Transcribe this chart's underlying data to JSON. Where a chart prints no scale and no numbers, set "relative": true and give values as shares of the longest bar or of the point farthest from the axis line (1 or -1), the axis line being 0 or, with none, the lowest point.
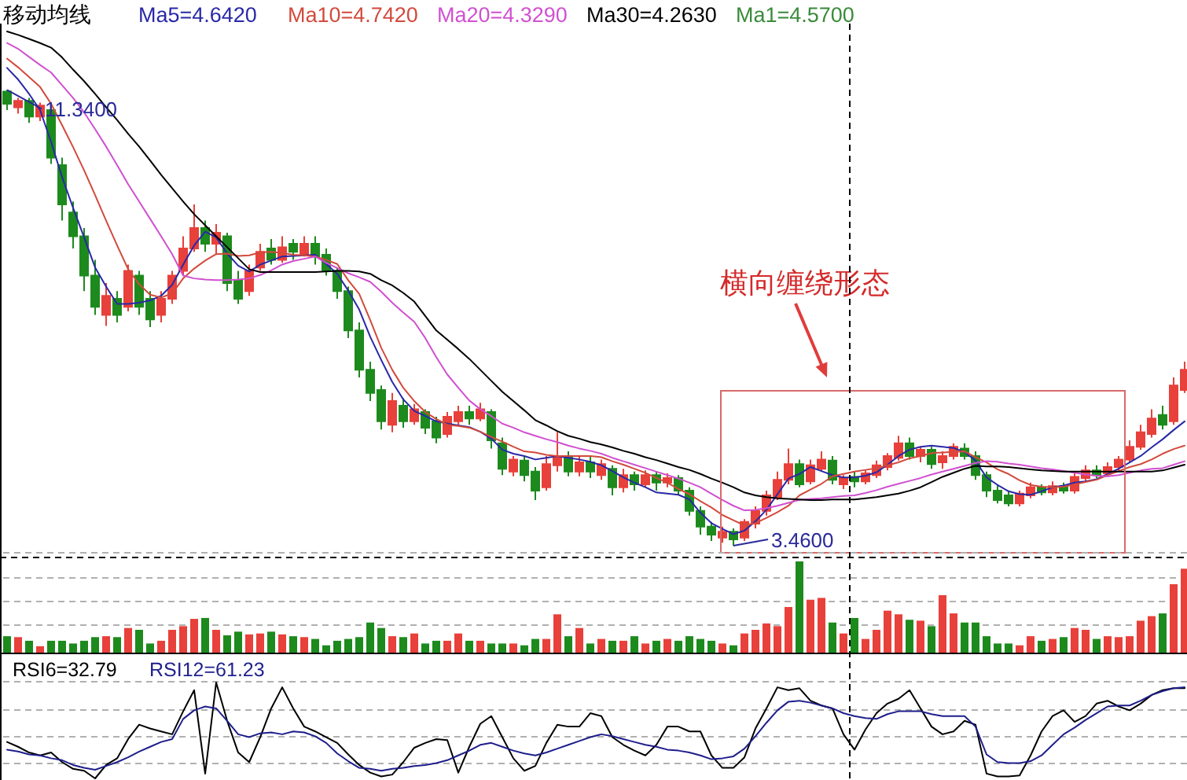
{
  "chart_data": [
    {
      "type": "candlestick",
      "title": "移动均线",
      "legend": "top",
      "categories": [
        null,
        null,
        null,
        null,
        null,
        null,
        null,
        null,
        null,
        null,
        null,
        null,
        null,
        null,
        null,
        null,
        null,
        null,
        null,
        null,
        null,
        null,
        null,
        null,
        null,
        null,
        null,
        null,
        null,
        null,
        null,
        null,
        null,
        null,
        null,
        null,
        null,
        null,
        null,
        null,
        null,
        null,
        null,
        null,
        null,
        null,
        null,
        null,
        null,
        null,
        null,
        null,
        null,
        null,
        null,
        null,
        null,
        null,
        null,
        null,
        null,
        null,
        null,
        null,
        null,
        null,
        null,
        null,
        null,
        null,
        null,
        null,
        null,
        null,
        null,
        null,
        null,
        null,
        null,
        null,
        null,
        null,
        null,
        null,
        null,
        null,
        null,
        null,
        null,
        null,
        null,
        null,
        null,
        null,
        null,
        null,
        null,
        null,
        null,
        null,
        null,
        null,
        null,
        null,
        null,
        null,
        null,
        null
      ],
      "series": [
        {
          "type": "line",
          "name": "Ma5=4.6420",
          "color": "#2828a8",
          "values": [
            11.72,
            11.52,
            11.27,
            10.99,
            10.44,
            9.83,
            9.3,
            8.79,
            8.27,
            7.94,
            7.64,
            7.64,
            7.66,
            7.7,
            7.78,
            7.97,
            8.32,
            8.65,
            8.89,
            8.79,
            8.51,
            8.3,
            8.2,
            8.32,
            8.39,
            8.46,
            8.47,
            8.48,
            8.49,
            8.33,
            8.16,
            7.87,
            7.54,
            7.07,
            6.67,
            6.29,
            5.99,
            5.79,
            5.7,
            5.61,
            5.57,
            5.54,
            5.51,
            5.43,
            5.31,
            5.12,
            5.05,
            5.01,
            4.95,
            4.98,
            5.01,
            4.98,
            4.95,
            4.91,
            4.85,
            4.75,
            4.64,
            4.55,
            4.47,
            4.38,
            4.36,
            4.34,
            4.26,
            4.03,
            3.85,
            3.75,
            3.66,
            3.72,
            3.88,
            4.08,
            4.35,
            4.62,
            4.7,
            4.82,
            4.75,
            4.68,
            4.64,
            4.64,
            4.67,
            4.73,
            4.86,
            5.01,
            5.12,
            5.17,
            5.19,
            5.17,
            5.15,
            5.08,
            4.93,
            4.64,
            4.51,
            4.4,
            4.35,
            4.34,
            4.4,
            4.47,
            4.5,
            4.55,
            4.57,
            4.61,
            4.7,
            4.79,
            4.9,
            5.01,
            5.16,
            5.3,
            5.46,
            5.61
          ]
        },
        {
          "type": "line",
          "name": "Ma10=4.7420",
          "color": "#d24a3c",
          "values": [
            11.88,
            11.73,
            11.56,
            11.39,
            11.1,
            10.73,
            10.35,
            9.95,
            9.52,
            9.08,
            8.65,
            8.24,
            7.98,
            7.8,
            7.75,
            7.82,
            8.08,
            8.25,
            8.39,
            8.5,
            8.51,
            8.47,
            8.48,
            8.53,
            8.54,
            8.52,
            8.49,
            8.48,
            8.46,
            8.4,
            8.33,
            8.05,
            7.81,
            7.36,
            6.88,
            6.5,
            6.19,
            5.96,
            5.77,
            5.65,
            5.55,
            5.53,
            5.5,
            5.43,
            5.34,
            5.26,
            5.17,
            5.09,
            5.07,
            5.03,
            5.01,
            5.01,
            5.01,
            5.01,
            4.99,
            4.92,
            4.86,
            4.79,
            4.72,
            4.63,
            4.55,
            4.44,
            4.35,
            4.23,
            4.12,
            3.99,
            3.9,
            3.81,
            3.85,
            3.94,
            4.04,
            4.15,
            4.33,
            4.43,
            4.53,
            4.66,
            4.7,
            4.74,
            4.77,
            4.8,
            4.85,
            4.9,
            4.97,
            5.01,
            5.06,
            5.07,
            5.08,
            5.09,
            4.99,
            4.9,
            4.78,
            4.7,
            4.59,
            4.51,
            4.48,
            4.47,
            4.48,
            4.52,
            4.56,
            4.6,
            4.68,
            4.75,
            4.82,
            4.87,
            4.95,
            5.05,
            5.13,
            5.19
          ]
        },
        {
          "type": "line",
          "name": "Ma20=4.3290",
          "color": "#d050d0",
          "values": [
            12.15,
            12.05,
            11.91,
            11.77,
            11.64,
            11.42,
            11.2,
            10.95,
            10.66,
            10.36,
            10.04,
            9.71,
            9.41,
            9.11,
            8.81,
            8.5,
            8.13,
            8.08,
            8.06,
            8.05,
            8.05,
            8.06,
            8.08,
            8.14,
            8.22,
            8.32,
            8.38,
            8.42,
            8.46,
            8.35,
            8.26,
            8.17,
            8.1,
            8.02,
            7.85,
            7.66,
            7.49,
            7.33,
            7.05,
            6.72,
            6.42,
            6.19,
            5.97,
            5.82,
            5.7,
            5.57,
            5.5,
            5.42,
            5.36,
            5.3,
            5.25,
            5.19,
            5.14,
            5.1,
            5.05,
            4.98,
            4.92,
            4.86,
            4.8,
            4.74,
            4.68,
            4.62,
            4.55,
            4.47,
            4.36,
            4.25,
            4.15,
            4.07,
            4.08,
            4.11,
            4.15,
            4.2,
            4.25,
            4.27,
            4.28,
            4.3,
            4.32,
            4.33,
            4.37,
            4.42,
            4.48,
            4.53,
            4.58,
            4.63,
            4.69,
            4.74,
            4.79,
            4.84,
            4.89,
            4.92,
            4.91,
            4.88,
            4.86,
            4.83,
            4.8,
            4.78,
            4.75,
            4.72,
            4.69,
            4.67,
            4.66,
            4.68,
            4.72,
            4.76,
            4.79,
            4.8,
            4.86,
            4.92
          ]
        },
        {
          "type": "line",
          "name": "Ma30=4.2630",
          "color": "#000000",
          "values": [
            12.35,
            12.29,
            12.22,
            12.15,
            12.07,
            11.9,
            11.69,
            11.49,
            11.27,
            11.04,
            10.82,
            10.58,
            10.36,
            10.12,
            9.87,
            9.64,
            9.41,
            9.19,
            9.0,
            8.81,
            8.62,
            8.43,
            8.24,
            8.19,
            8.19,
            8.19,
            8.19,
            8.19,
            8.19,
            8.2,
            8.21,
            8.21,
            8.2,
            8.16,
            8.05,
            7.96,
            7.83,
            7.68,
            7.43,
            7.18,
            7.02,
            6.86,
            6.69,
            6.5,
            6.31,
            6.12,
            5.96,
            5.8,
            5.63,
            5.54,
            5.44,
            5.36,
            5.31,
            5.25,
            5.21,
            5.16,
            5.1,
            5.05,
            4.99,
            4.94,
            4.88,
            4.82,
            4.77,
            4.7,
            4.62,
            4.55,
            4.47,
            4.38,
            4.33,
            4.3,
            4.28,
            4.27,
            4.26,
            4.25,
            4.25,
            4.26,
            4.26,
            4.26,
            4.28,
            4.3,
            4.33,
            4.36,
            4.41,
            4.47,
            4.56,
            4.65,
            4.72,
            4.79,
            4.84,
            4.83,
            4.83,
            4.82,
            4.8,
            4.78,
            4.76,
            4.75,
            4.74,
            4.74,
            4.74,
            4.74,
            4.74,
            4.74,
            4.74,
            4.74,
            4.74,
            4.76,
            4.81,
            4.86
          ]
        },
        {
          "type": "candlestick",
          "name": "Ma1=4.5700",
          "color": "#3a8a3a",
          "ohlc": [
            [
              11.31,
              11.34,
              10.99,
              11.1
            ],
            [
              11.04,
              11.2,
              10.93,
              11.15
            ],
            [
              11.15,
              11.2,
              10.77,
              10.88
            ],
            [
              10.88,
              11.12,
              10.8,
              11.07
            ],
            [
              10.99,
              11.04,
              10.06,
              10.17
            ],
            [
              10.04,
              10.17,
              9.08,
              9.36
            ],
            [
              9.22,
              9.41,
              8.6,
              8.81
            ],
            [
              8.81,
              8.95,
              7.86,
              8.13
            ],
            [
              8.13,
              8.4,
              7.45,
              7.59
            ],
            [
              7.45,
              8.0,
              7.26,
              7.78
            ],
            [
              7.73,
              7.86,
              7.32,
              7.45
            ],
            [
              7.59,
              8.32,
              7.51,
              8.21
            ],
            [
              8.13,
              8.21,
              7.45,
              7.59
            ],
            [
              7.73,
              7.86,
              7.24,
              7.37
            ],
            [
              7.45,
              7.86,
              7.32,
              7.73
            ],
            [
              7.73,
              8.21,
              7.64,
              8.13
            ],
            [
              8.21,
              8.81,
              8.13,
              8.6
            ],
            [
              8.6,
              9.36,
              8.54,
              8.95
            ],
            [
              8.95,
              9.08,
              8.54,
              8.68
            ],
            [
              8.68,
              9.02,
              8.49,
              8.87
            ],
            [
              8.81,
              8.87,
              7.86,
              8.0
            ],
            [
              8.05,
              8.21,
              7.64,
              7.73
            ],
            [
              7.86,
              8.32,
              7.78,
              8.21
            ],
            [
              8.27,
              8.68,
              8.21,
              8.54
            ],
            [
              8.6,
              8.76,
              8.32,
              8.4
            ],
            [
              8.4,
              8.81,
              8.35,
              8.62
            ],
            [
              8.68,
              8.76,
              8.4,
              8.54
            ],
            [
              8.49,
              8.81,
              8.46,
              8.68
            ],
            [
              8.68,
              8.81,
              8.32,
              8.46
            ],
            [
              8.49,
              8.6,
              8.13,
              8.21
            ],
            [
              8.21,
              8.27,
              7.73,
              7.86
            ],
            [
              7.86,
              7.94,
              7.05,
              7.18
            ],
            [
              7.18,
              7.32,
              6.37,
              6.5
            ],
            [
              6.5,
              6.64,
              5.96,
              6.1
            ],
            [
              6.15,
              6.23,
              5.47,
              5.61
            ],
            [
              5.55,
              6.1,
              5.42,
              5.96
            ],
            [
              5.88,
              6.01,
              5.5,
              5.61
            ],
            [
              5.61,
              5.91,
              5.55,
              5.82
            ],
            [
              5.77,
              5.82,
              5.39,
              5.5
            ],
            [
              5.61,
              5.69,
              5.23,
              5.33
            ],
            [
              5.39,
              5.77,
              5.33,
              5.69
            ],
            [
              5.61,
              5.88,
              5.55,
              5.77
            ],
            [
              5.77,
              5.88,
              5.55,
              5.66
            ],
            [
              5.66,
              5.93,
              5.61,
              5.82
            ],
            [
              5.77,
              5.82,
              5.14,
              5.28
            ],
            [
              5.23,
              5.33,
              4.68,
              4.79
            ],
            [
              4.74,
              5.01,
              4.66,
              4.95
            ],
            [
              4.93,
              5.01,
              4.57,
              4.68
            ],
            [
              4.74,
              4.82,
              4.25,
              4.41
            ],
            [
              4.47,
              5.01,
              4.41,
              4.87
            ],
            [
              4.85,
              5.42,
              4.74,
              5.01
            ],
            [
              5.01,
              5.09,
              4.66,
              4.74
            ],
            [
              4.74,
              5.01,
              4.66,
              4.9
            ],
            [
              4.9,
              5.01,
              4.63,
              4.74
            ],
            [
              4.68,
              4.95,
              4.6,
              4.87
            ],
            [
              4.79,
              4.85,
              4.33,
              4.47
            ],
            [
              4.47,
              4.79,
              4.38,
              4.68
            ],
            [
              4.68,
              4.74,
              4.41,
              4.52
            ],
            [
              4.52,
              4.76,
              4.47,
              4.68
            ],
            [
              4.68,
              4.74,
              4.41,
              4.55
            ],
            [
              4.55,
              4.71,
              4.47,
              4.63
            ],
            [
              4.63,
              4.68,
              4.33,
              4.41
            ],
            [
              4.41,
              4.47,
              3.98,
              4.06
            ],
            [
              4.06,
              4.14,
              3.65,
              3.79
            ],
            [
              3.79,
              3.87,
              3.54,
              3.65
            ],
            [
              3.6,
              3.79,
              3.51,
              3.7
            ],
            [
              3.7,
              3.76,
              3.46,
              3.57
            ],
            [
              3.6,
              3.92,
              3.54,
              3.87
            ],
            [
              3.84,
              4.14,
              3.76,
              4.06
            ],
            [
              4.06,
              4.41,
              3.98,
              4.33
            ],
            [
              4.3,
              4.74,
              4.25,
              4.6
            ],
            [
              4.6,
              5.14,
              4.52,
              4.87
            ],
            [
              4.87,
              4.95,
              4.47,
              4.52
            ],
            [
              4.57,
              4.95,
              4.52,
              4.85
            ],
            [
              4.79,
              5.09,
              4.74,
              4.95
            ],
            [
              4.93,
              5.01,
              4.52,
              4.6
            ],
            [
              4.52,
              4.68,
              4.44,
              4.63
            ],
            [
              4.65,
              4.74,
              4.47,
              4.57
            ],
            [
              4.57,
              4.76,
              4.52,
              4.71
            ],
            [
              4.68,
              4.93,
              4.63,
              4.85
            ],
            [
              4.82,
              5.06,
              4.76,
              5.01
            ],
            [
              4.98,
              5.36,
              4.93,
              5.23
            ],
            [
              5.23,
              5.33,
              4.95,
              5.01
            ],
            [
              5.01,
              5.17,
              4.9,
              5.12
            ],
            [
              5.12,
              5.17,
              4.79,
              4.87
            ],
            [
              4.9,
              5.09,
              4.79,
              5.01
            ],
            [
              5.01,
              5.23,
              4.95,
              5.17
            ],
            [
              5.14,
              5.23,
              4.95,
              5.01
            ],
            [
              5.01,
              5.09,
              4.6,
              4.68
            ],
            [
              4.68,
              4.74,
              4.3,
              4.41
            ],
            [
              4.41,
              4.52,
              4.19,
              4.25
            ],
            [
              4.33,
              4.41,
              4.14,
              4.19
            ],
            [
              4.19,
              4.41,
              4.14,
              4.36
            ],
            [
              4.33,
              4.55,
              4.28,
              4.47
            ],
            [
              4.47,
              4.52,
              4.33,
              4.38
            ],
            [
              4.38,
              4.57,
              4.33,
              4.49
            ],
            [
              4.49,
              4.55,
              4.36,
              4.41
            ],
            [
              4.41,
              4.74,
              4.36,
              4.65
            ],
            [
              4.63,
              4.85,
              4.57,
              4.76
            ],
            [
              4.76,
              4.85,
              4.63,
              4.68
            ],
            [
              4.71,
              4.9,
              4.65,
              4.82
            ],
            [
              4.82,
              5.01,
              4.76,
              4.95
            ],
            [
              4.95,
              5.28,
              4.9,
              5.17
            ],
            [
              5.17,
              5.55,
              5.12,
              5.42
            ],
            [
              5.39,
              5.82,
              5.33,
              5.66
            ],
            [
              5.72,
              5.88,
              5.47,
              5.55
            ],
            [
              5.61,
              6.37,
              5.55,
              6.23
            ],
            [
              6.15,
              6.64,
              6.1,
              6.5
            ]
          ],
          "colors": [
            "#1d8a1d",
            "#e8403a",
            "#1d8a1d",
            "#e8403a",
            "#1d8a1d",
            "#1d8a1d",
            "#1d8a1d",
            "#1d8a1d",
            "#1d8a1d",
            "#e8403a",
            "#1d8a1d",
            "#e8403a",
            "#1d8a1d",
            "#1d8a1d",
            "#e8403a",
            "#e8403a",
            "#e8403a",
            "#e8403a",
            "#1d8a1d",
            "#e8403a",
            "#1d8a1d",
            "#1d8a1d",
            "#e8403a",
            "#e8403a",
            "#1d8a1d",
            "#e8403a",
            "#1d8a1d",
            "#e8403a",
            "#1d8a1d",
            "#1d8a1d",
            "#1d8a1d",
            "#1d8a1d",
            "#1d8a1d",
            "#1d8a1d",
            "#1d8a1d",
            "#e8403a",
            "#1d8a1d",
            "#e8403a",
            "#1d8a1d",
            "#1d8a1d",
            "#e8403a",
            "#e8403a",
            "#1d8a1d",
            "#e8403a",
            "#1d8a1d",
            "#1d8a1d",
            "#e8403a",
            "#1d8a1d",
            "#1d8a1d",
            "#e8403a",
            "#e8403a",
            "#1d8a1d",
            "#e8403a",
            "#1d8a1d",
            "#e8403a",
            "#1d8a1d",
            "#e8403a",
            "#1d8a1d",
            "#e8403a",
            "#1d8a1d",
            "#e8403a",
            "#1d8a1d",
            "#1d8a1d",
            "#1d8a1d",
            "#1d8a1d",
            "#e8403a",
            "#1d8a1d",
            "#e8403a",
            "#e8403a",
            "#e8403a",
            "#e8403a",
            "#e8403a",
            "#1d8a1d",
            "#e8403a",
            "#e8403a",
            "#1d8a1d",
            "#e8403a",
            "#1d8a1d",
            "#e8403a",
            "#e8403a",
            "#e8403a",
            "#e8403a",
            "#1d8a1d",
            "#e8403a",
            "#1d8a1d",
            "#e8403a",
            "#e8403a",
            "#1d8a1d",
            "#1d8a1d",
            "#1d8a1d",
            "#1d8a1d",
            "#1d8a1d",
            "#e8403a",
            "#e8403a",
            "#1d8a1d",
            "#e8403a",
            "#1d8a1d",
            "#e8403a",
            "#e8403a",
            "#1d8a1d",
            "#e8403a",
            "#e8403a",
            "#e8403a",
            "#e8403a",
            "#e8403a",
            "#1d8a1d",
            "#e8403a",
            "#e8403a"
          ]
        }
      ],
      "annotations": [
        {
          "text": "11.3400",
          "y": 11.34
        },
        "3.4600",
        "横向缠绕形态"
      ]
    },
    {
      "type": "bar",
      "relative": true,
      "grid": "y",
      "categories": [
        null,
        null,
        null,
        null,
        null,
        null,
        null,
        null,
        null,
        null,
        null,
        null,
        null,
        null,
        null,
        null,
        null,
        null,
        null,
        null,
        null,
        null,
        null,
        null,
        null,
        null,
        null,
        null,
        null,
        null,
        null,
        null,
        null,
        null,
        null,
        null,
        null,
        null,
        null,
        null,
        null,
        null,
        null,
        null,
        null,
        null,
        null,
        null,
        null,
        null,
        null,
        null,
        null,
        null,
        null,
        null,
        null,
        null,
        null,
        null,
        null,
        null,
        null,
        null,
        null,
        null,
        null,
        null,
        null,
        null,
        null,
        null,
        null,
        null,
        null,
        null,
        null,
        null,
        null,
        null,
        null,
        null,
        null,
        null,
        null,
        null,
        null,
        null,
        null,
        null,
        null,
        null,
        null,
        null,
        null,
        null,
        null,
        null,
        null,
        null,
        null,
        null,
        null,
        null,
        null,
        null,
        null,
        null
      ],
      "values": [
        0.18,
        0.17,
        0.13,
        0.07,
        0.13,
        0.13,
        0.1,
        0.13,
        0.17,
        0.18,
        0.17,
        0.27,
        0.25,
        0.1,
        0.13,
        0.25,
        0.29,
        0.37,
        0.38,
        0.25,
        0.19,
        0.23,
        0.2,
        0.21,
        0.23,
        0.2,
        0.18,
        0.17,
        0.15,
        0.08,
        0.13,
        0.15,
        0.17,
        0.33,
        0.27,
        0.18,
        0.17,
        0.21,
        0.1,
        0.13,
        0.13,
        0.21,
        0.13,
        0.13,
        0.1,
        0.1,
        0.1,
        0.08,
        0.15,
        0.15,
        0.42,
        0.18,
        0.27,
        0.1,
        0.15,
        0.13,
        0.13,
        0.18,
        0.1,
        0.13,
        0.15,
        0.13,
        0.18,
        0.15,
        0.13,
        0.1,
        0.08,
        0.21,
        0.25,
        0.32,
        0.29,
        0.5,
        1.0,
        0.58,
        0.6,
        0.33,
        0.21,
        0.38,
        0.15,
        0.25,
        0.46,
        0.42,
        0.36,
        0.35,
        0.29,
        0.63,
        0.43,
        0.33,
        0.33,
        0.18,
        0.1,
        0.1,
        0.08,
        0.18,
        0.13,
        0.15,
        0.17,
        0.27,
        0.25,
        0.15,
        0.18,
        0.17,
        0.18,
        0.35,
        0.4,
        0.43,
        0.75,
        0.92
      ],
      "colors": [
        "#1d8a1d",
        "#e8403a",
        "#1d8a1d",
        "#e8403a",
        "#1d8a1d",
        "#1d8a1d",
        "#1d8a1d",
        "#1d8a1d",
        "#1d8a1d",
        "#e8403a",
        "#1d8a1d",
        "#e8403a",
        "#1d8a1d",
        "#1d8a1d",
        "#e8403a",
        "#e8403a",
        "#e8403a",
        "#e8403a",
        "#1d8a1d",
        "#e8403a",
        "#1d8a1d",
        "#1d8a1d",
        "#e8403a",
        "#e8403a",
        "#1d8a1d",
        "#e8403a",
        "#1d8a1d",
        "#e8403a",
        "#1d8a1d",
        "#1d8a1d",
        "#1d8a1d",
        "#1d8a1d",
        "#1d8a1d",
        "#1d8a1d",
        "#1d8a1d",
        "#e8403a",
        "#1d8a1d",
        "#e8403a",
        "#1d8a1d",
        "#1d8a1d",
        "#e8403a",
        "#e8403a",
        "#1d8a1d",
        "#e8403a",
        "#1d8a1d",
        "#1d8a1d",
        "#e8403a",
        "#1d8a1d",
        "#1d8a1d",
        "#e8403a",
        "#e8403a",
        "#1d8a1d",
        "#e8403a",
        "#1d8a1d",
        "#e8403a",
        "#1d8a1d",
        "#e8403a",
        "#1d8a1d",
        "#e8403a",
        "#1d8a1d",
        "#e8403a",
        "#1d8a1d",
        "#1d8a1d",
        "#1d8a1d",
        "#1d8a1d",
        "#e8403a",
        "#1d8a1d",
        "#e8403a",
        "#e8403a",
        "#e8403a",
        "#e8403a",
        "#e8403a",
        "#1d8a1d",
        "#e8403a",
        "#e8403a",
        "#1d8a1d",
        "#e8403a",
        "#1d8a1d",
        "#e8403a",
        "#e8403a",
        "#e8403a",
        "#e8403a",
        "#1d8a1d",
        "#e8403a",
        "#1d8a1d",
        "#e8403a",
        "#e8403a",
        "#1d8a1d",
        "#1d8a1d",
        "#1d8a1d",
        "#1d8a1d",
        "#1d8a1d",
        "#e8403a",
        "#e8403a",
        "#1d8a1d",
        "#e8403a",
        "#1d8a1d",
        "#e8403a",
        "#e8403a",
        "#1d8a1d",
        "#e8403a",
        "#e8403a",
        "#e8403a",
        "#e8403a",
        "#e8403a",
        "#1d8a1d",
        "#e8403a",
        "#e8403a"
      ]
    },
    {
      "type": "line",
      "relative": true,
      "grid": "y",
      "legend": "top left",
      "categories": [
        null,
        null,
        null,
        null,
        null,
        null,
        null,
        null,
        null,
        null,
        null,
        null,
        null,
        null,
        null,
        null,
        null,
        null,
        null,
        null,
        null,
        null,
        null,
        null,
        null,
        null,
        null,
        null,
        null,
        null,
        null,
        null,
        null,
        null,
        null,
        null,
        null,
        null,
        null,
        null,
        null,
        null,
        null,
        null,
        null,
        null,
        null,
        null,
        null,
        null,
        null,
        null,
        null,
        null,
        null,
        null,
        null,
        null,
        null,
        null,
        null,
        null,
        null,
        null,
        null,
        null,
        null,
        null,
        null,
        null,
        null,
        null,
        null,
        null,
        null,
        null,
        null,
        null,
        null,
        null,
        null,
        null,
        null,
        null,
        null,
        null,
        null,
        null,
        null,
        null,
        null,
        null,
        null,
        null,
        null,
        null,
        null,
        null,
        null,
        null,
        null,
        null,
        null,
        null,
        null,
        null,
        null,
        null
      ],
      "series": [
        {
          "name": "RSI6=32.79",
          "color": "#000000",
          "values": [
            0.38,
            0.33,
            0.27,
            0.24,
            0.27,
            0.17,
            0.1,
            0.08,
            0.0,
            0.14,
            0.21,
            0.41,
            0.56,
            0.52,
            0.49,
            0.46,
            0.7,
            0.92,
            0.05,
            1.0,
            0.6,
            0.27,
            0.17,
            0.43,
            0.73,
            0.95,
            0.73,
            0.54,
            0.49,
            0.43,
            0.37,
            0.25,
            0.14,
            0.06,
            0.02,
            0.04,
            0.17,
            0.32,
            0.37,
            0.41,
            0.4,
            0.06,
            0.33,
            0.57,
            0.65,
            0.43,
            0.21,
            0.08,
            0.13,
            0.37,
            0.56,
            0.54,
            0.54,
            0.68,
            0.65,
            0.43,
            0.35,
            0.29,
            0.24,
            0.35,
            0.54,
            0.54,
            0.49,
            0.49,
            0.24,
            0.11,
            0.11,
            0.22,
            0.52,
            0.73,
            0.95,
            0.92,
            0.94,
            0.81,
            0.76,
            0.73,
            0.46,
            0.3,
            0.51,
            0.68,
            0.78,
            0.83,
            0.92,
            0.73,
            0.54,
            0.46,
            0.49,
            0.6,
            0.56,
            0.05,
            0.02,
            0.02,
            0.03,
            0.24,
            0.49,
            0.65,
            0.71,
            0.59,
            0.65,
            0.78,
            0.81,
            0.75,
            0.71,
            0.78,
            0.87,
            0.92,
            0.94,
            0.94
          ]
        },
        {
          "name": "RSI12=61.23",
          "color": "#1e1e8c",
          "values": [
            0.3,
            0.28,
            0.25,
            0.24,
            0.21,
            0.19,
            0.14,
            0.11,
            0.09,
            0.13,
            0.17,
            0.22,
            0.28,
            0.33,
            0.38,
            0.41,
            0.62,
            0.71,
            0.75,
            0.73,
            0.6,
            0.46,
            0.43,
            0.47,
            0.48,
            0.46,
            0.49,
            0.48,
            0.44,
            0.37,
            0.26,
            0.18,
            0.11,
            0.1,
            0.08,
            0.1,
            0.11,
            0.13,
            0.14,
            0.16,
            0.19,
            0.24,
            0.29,
            0.35,
            0.37,
            0.33,
            0.29,
            0.26,
            0.24,
            0.27,
            0.31,
            0.35,
            0.39,
            0.43,
            0.46,
            0.44,
            0.41,
            0.38,
            0.35,
            0.33,
            0.3,
            0.29,
            0.27,
            0.24,
            0.2,
            0.21,
            0.23,
            0.31,
            0.44,
            0.58,
            0.71,
            0.8,
            0.81,
            0.79,
            0.76,
            0.73,
            0.68,
            0.65,
            0.63,
            0.62,
            0.67,
            0.7,
            0.7,
            0.7,
            0.67,
            0.65,
            0.65,
            0.65,
            0.54,
            0.25,
            0.17,
            0.16,
            0.16,
            0.18,
            0.24,
            0.35,
            0.46,
            0.53,
            0.61,
            0.68,
            0.75,
            0.76,
            0.76,
            0.81,
            0.87,
            0.91,
            0.94,
            0.95
          ]
        }
      ]
    }
  ]
}
